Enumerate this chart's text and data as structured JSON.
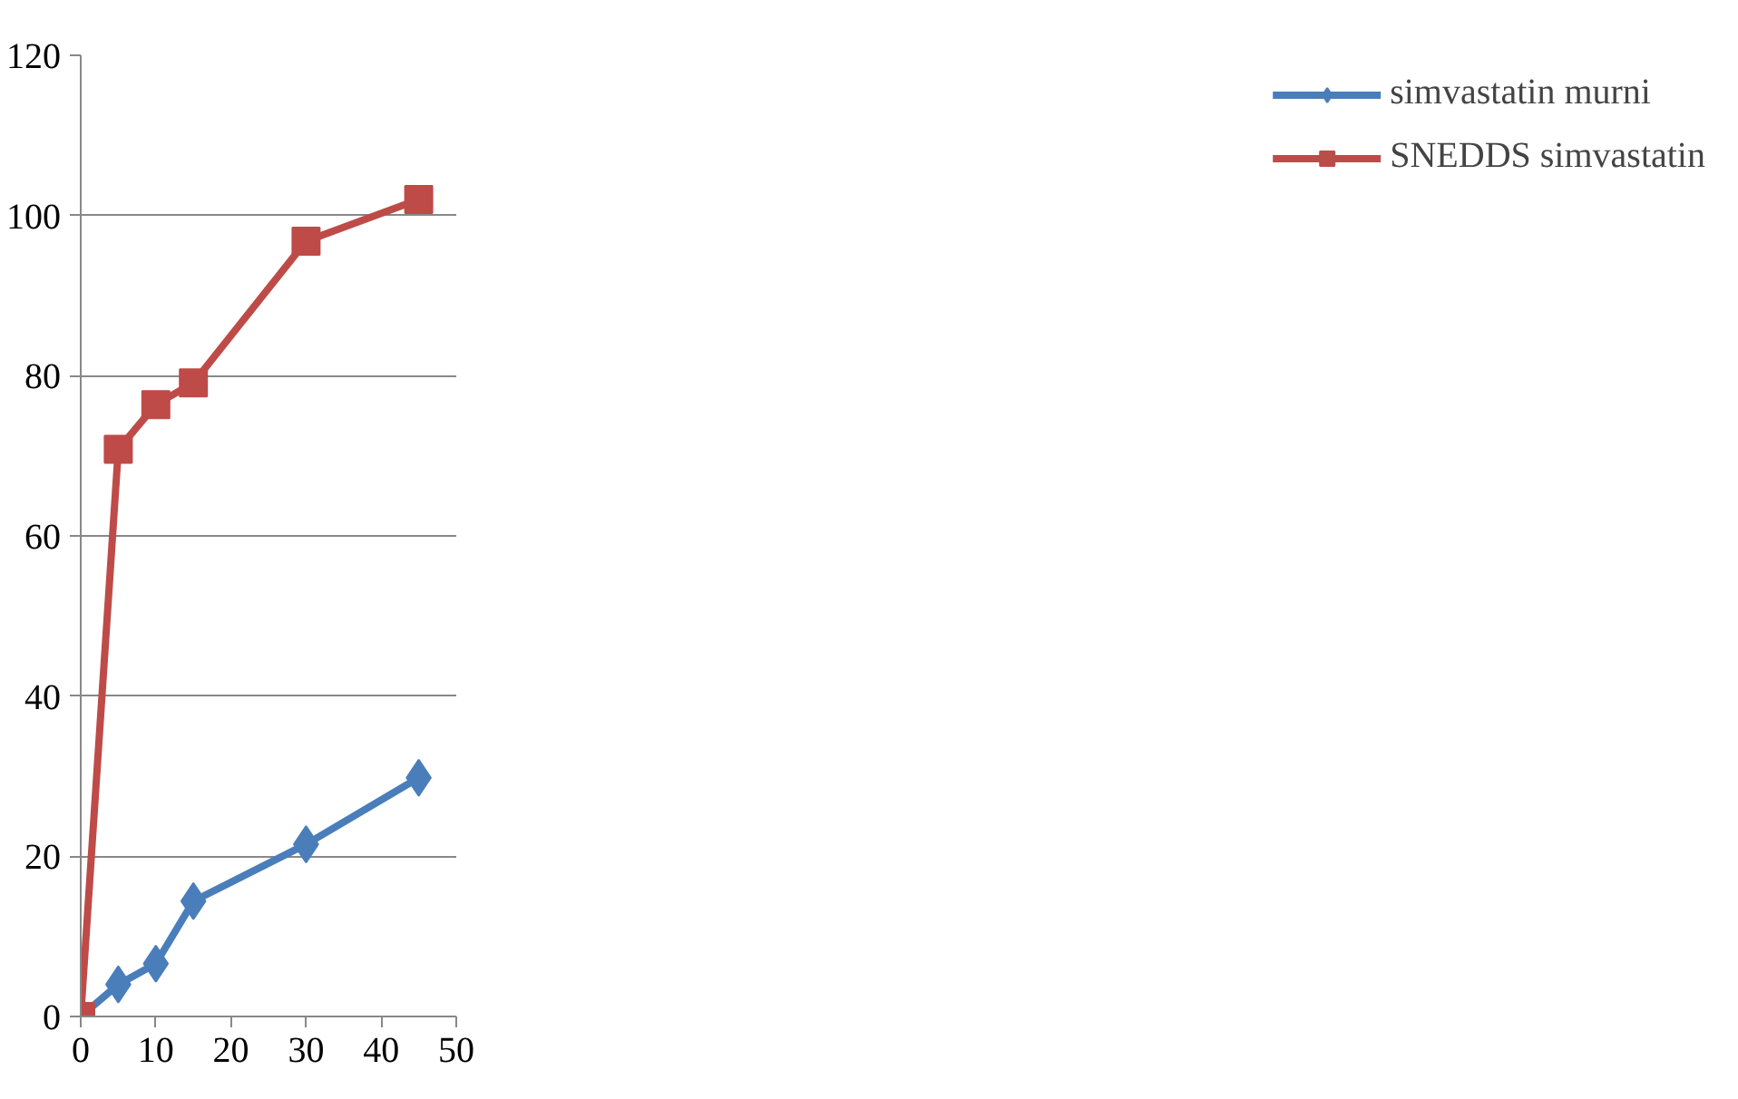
{
  "chart_data": {
    "type": "line",
    "x": [
      0,
      5,
      10,
      15,
      30,
      45
    ],
    "series": [
      {
        "name": "simvastatin murni",
        "color": "#4a7ebb",
        "marker": "diamond",
        "values": [
          0,
          4.0,
          6.6,
          14.4,
          21.5,
          29.8
        ]
      },
      {
        "name": "SNEDDS simvastatin",
        "color": "#be4b48",
        "marker": "square",
        "values": [
          0,
          70.8,
          76.4,
          79.1,
          96.8,
          102
        ]
      }
    ],
    "xlim": [
      0,
      50
    ],
    "xticks": [
      0,
      10,
      20,
      30,
      40,
      50
    ],
    "ylim": [
      0,
      120
    ],
    "yticks": [
      0,
      20,
      40,
      60,
      80,
      100,
      120
    ],
    "grid": "y",
    "legend": "right",
    "line_style": "solid"
  }
}
